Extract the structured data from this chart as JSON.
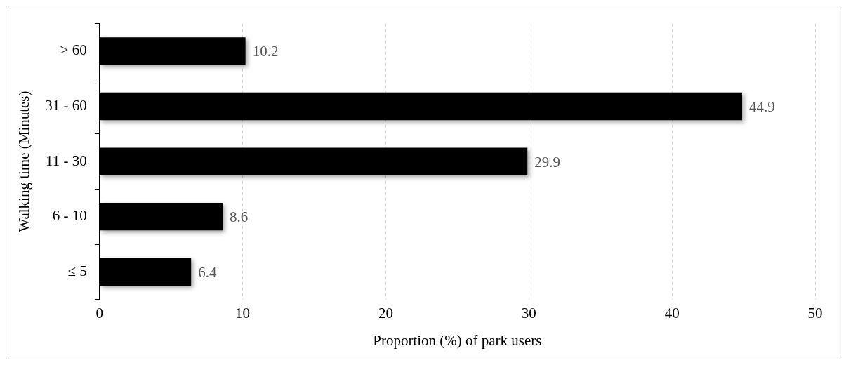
{
  "chart_data": {
    "type": "bar",
    "orientation": "horizontal",
    "xlabel": "Proportion (%) of park users",
    "ylabel": "Walking time (Minutes)",
    "categories": [
      "> 60",
      "31 - 60",
      "11 - 30",
      "6 - 10",
      "≤ 5"
    ],
    "values": [
      10.2,
      44.9,
      29.9,
      8.6,
      6.4
    ],
    "color": "#000000",
    "xlim": [
      0,
      50
    ],
    "xticks": [
      0,
      10,
      20,
      30,
      40,
      50
    ],
    "grid": "x",
    "data_labels": true
  }
}
